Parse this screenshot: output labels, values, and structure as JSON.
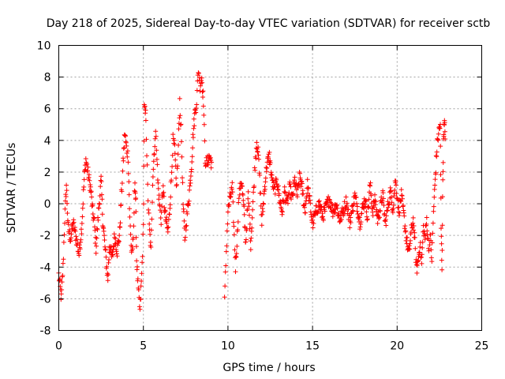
{
  "chart_data": {
    "type": "scatter",
    "title": "Day 218 of 2025, Sidereal Day-to-day VTEC variation (SDTVAR) for receiver sctb",
    "xlabel": "GPS time / hours",
    "ylabel": "SDTVAR / TECUs",
    "xlim": [
      0,
      25
    ],
    "ylim": [
      -8,
      10
    ],
    "xticks": [
      0,
      5,
      10,
      15,
      20,
      25
    ],
    "yticks": [
      -8,
      -6,
      -4,
      -2,
      0,
      2,
      4,
      6,
      8,
      10
    ],
    "grid": true,
    "marker": "+",
    "color": "#ff0000",
    "trace": [
      [
        0.0,
        -4.5
      ],
      [
        0.15,
        -6.0
      ],
      [
        0.25,
        -4.0
      ],
      [
        0.35,
        -1.0
      ],
      [
        0.45,
        1.2
      ],
      [
        0.55,
        -1.5
      ],
      [
        0.7,
        -2.2
      ],
      [
        0.85,
        -1.2
      ],
      [
        1.0,
        -2.0
      ],
      [
        1.2,
        -3.2
      ],
      [
        1.35,
        -1.5
      ],
      [
        1.5,
        1.5
      ],
      [
        1.6,
        2.8
      ],
      [
        1.75,
        1.8
      ],
      [
        1.9,
        0.8
      ],
      [
        2.0,
        -0.5
      ],
      [
        2.1,
        -1.2
      ],
      [
        2.2,
        -2.8
      ],
      [
        2.35,
        -0.5
      ],
      [
        2.5,
        1.5
      ],
      [
        2.6,
        -1.0
      ],
      [
        2.75,
        -3.0
      ],
      [
        2.9,
        -4.8
      ],
      [
        3.0,
        -2.5
      ],
      [
        3.15,
        -3.5
      ],
      [
        3.3,
        -2.0
      ],
      [
        3.45,
        -3.0
      ],
      [
        3.6,
        -1.8
      ],
      [
        3.7,
        0.5
      ],
      [
        3.8,
        2.5
      ],
      [
        3.9,
        4.5
      ],
      [
        4.0,
        3.5
      ],
      [
        4.1,
        3.0
      ],
      [
        4.2,
        -1.0
      ],
      [
        4.3,
        -3.0
      ],
      [
        4.4,
        -2.5
      ],
      [
        4.5,
        1.5
      ],
      [
        4.55,
        0.0
      ],
      [
        4.6,
        -3.5
      ],
      [
        4.7,
        -5.5
      ],
      [
        4.8,
        -6.8
      ],
      [
        4.9,
        -4.5
      ],
      [
        5.0,
        -1.5
      ],
      [
        5.05,
        6.0
      ],
      [
        5.15,
        5.5
      ],
      [
        5.25,
        1.0
      ],
      [
        5.35,
        -1.5
      ],
      [
        5.45,
        -3.0
      ],
      [
        5.55,
        1.5
      ],
      [
        5.65,
        3.5
      ],
      [
        5.75,
        4.5
      ],
      [
        5.85,
        1.5
      ],
      [
        5.95,
        0.0
      ],
      [
        6.05,
        -1.0
      ],
      [
        6.15,
        1.0
      ],
      [
        6.3,
        -0.8
      ],
      [
        6.45,
        -1.8
      ],
      [
        6.55,
        -0.5
      ],
      [
        6.65,
        1.5
      ],
      [
        6.75,
        4.0
      ],
      [
        6.85,
        3.5
      ],
      [
        6.95,
        1.0
      ],
      [
        7.05,
        3.0
      ],
      [
        7.15,
        6.5
      ],
      [
        7.25,
        4.0
      ],
      [
        7.35,
        0.0
      ],
      [
        7.45,
        -2.2
      ],
      [
        7.55,
        -1.0
      ],
      [
        7.7,
        0.5
      ],
      [
        7.85,
        2.5
      ],
      [
        7.95,
        4.5
      ],
      [
        8.05,
        5.8
      ],
      [
        8.15,
        6.5
      ],
      [
        8.25,
        8.5
      ],
      [
        8.35,
        7.5
      ],
      [
        8.45,
        8.0
      ],
      [
        8.55,
        6.5
      ],
      [
        8.65,
        2.8
      ],
      [
        8.75,
        2.5
      ],
      [
        8.9,
        3.0
      ],
      [
        9.05,
        2.5
      ],
      [
        9.8,
        -6.2
      ],
      [
        9.9,
        -3.0
      ],
      [
        10.0,
        -0.5
      ],
      [
        10.1,
        0.2
      ],
      [
        10.25,
        1.0
      ],
      [
        10.35,
        -1.5
      ],
      [
        10.45,
        -4.0
      ],
      [
        10.55,
        -2.0
      ],
      [
        10.65,
        0.5
      ],
      [
        10.8,
        1.5
      ],
      [
        10.95,
        -0.5
      ],
      [
        11.05,
        -2.5
      ],
      [
        11.2,
        0.5
      ],
      [
        11.35,
        -2.5
      ],
      [
        11.5,
        0.5
      ],
      [
        11.6,
        2.5
      ],
      [
        11.7,
        4.0
      ],
      [
        11.8,
        3.0
      ],
      [
        11.9,
        1.0
      ],
      [
        12.0,
        -1.2
      ],
      [
        12.15,
        0.8
      ],
      [
        12.3,
        2.5
      ],
      [
        12.45,
        3.0
      ],
      [
        12.6,
        1.5
      ],
      [
        12.75,
        0.8
      ],
      [
        12.9,
        1.5
      ],
      [
        13.05,
        0.3
      ],
      [
        13.2,
        -0.5
      ],
      [
        13.35,
        0.8
      ],
      [
        13.5,
        0.0
      ],
      [
        13.65,
        1.0
      ],
      [
        13.8,
        0.3
      ],
      [
        13.95,
        1.5
      ],
      [
        14.1,
        0.5
      ],
      [
        14.25,
        1.8
      ],
      [
        14.4,
        0.8
      ],
      [
        14.55,
        -0.5
      ],
      [
        14.7,
        1.2
      ],
      [
        14.85,
        0.0
      ],
      [
        15.0,
        -1.3
      ],
      [
        15.2,
        -0.5
      ],
      [
        15.4,
        0.0
      ],
      [
        15.6,
        -0.8
      ],
      [
        15.8,
        -0.2
      ],
      [
        16.0,
        0.3
      ],
      [
        16.2,
        -0.5
      ],
      [
        16.4,
        0.0
      ],
      [
        16.6,
        -1.0
      ],
      [
        16.8,
        -0.5
      ],
      [
        17.0,
        0.2
      ],
      [
        17.2,
        -1.2
      ],
      [
        17.35,
        -0.3
      ],
      [
        17.5,
        0.5
      ],
      [
        17.65,
        -0.2
      ],
      [
        17.8,
        -1.2
      ],
      [
        17.95,
        -0.3
      ],
      [
        18.1,
        0.3
      ],
      [
        18.25,
        -0.8
      ],
      [
        18.4,
        1.2
      ],
      [
        18.55,
        -0.5
      ],
      [
        18.7,
        0.3
      ],
      [
        18.85,
        -1.0
      ],
      [
        19.0,
        -0.3
      ],
      [
        19.15,
        0.6
      ],
      [
        19.3,
        -1.3
      ],
      [
        19.45,
        -0.2
      ],
      [
        19.6,
        0.8
      ],
      [
        19.75,
        -0.3
      ],
      [
        19.9,
        1.5
      ],
      [
        20.0,
        0.5
      ],
      [
        20.1,
        -0.5
      ],
      [
        20.25,
        0.5
      ],
      [
        20.4,
        -0.8
      ],
      [
        20.55,
        -2.2
      ],
      [
        20.7,
        -3.2
      ],
      [
        20.8,
        -2.0
      ],
      [
        20.95,
        -1.0
      ],
      [
        21.05,
        -2.5
      ],
      [
        21.15,
        -4.2
      ],
      [
        21.25,
        -3.5
      ],
      [
        21.35,
        -2.5
      ],
      [
        21.45,
        -3.8
      ],
      [
        21.55,
        -1.5
      ],
      [
        21.65,
        -2.2
      ],
      [
        21.75,
        -1.0
      ],
      [
        21.85,
        -2.8
      ],
      [
        21.95,
        -2.0
      ],
      [
        22.05,
        -3.5
      ],
      [
        22.15,
        -0.5
      ],
      [
        22.25,
        1.5
      ],
      [
        22.35,
        3.5
      ],
      [
        22.45,
        4.5
      ],
      [
        22.55,
        5.0
      ],
      [
        22.6,
        -1.5
      ],
      [
        22.65,
        -4.0
      ],
      [
        22.7,
        1.5
      ],
      [
        22.75,
        4.5
      ],
      [
        22.8,
        5.0
      ],
      [
        22.85,
        4.2
      ]
    ]
  }
}
